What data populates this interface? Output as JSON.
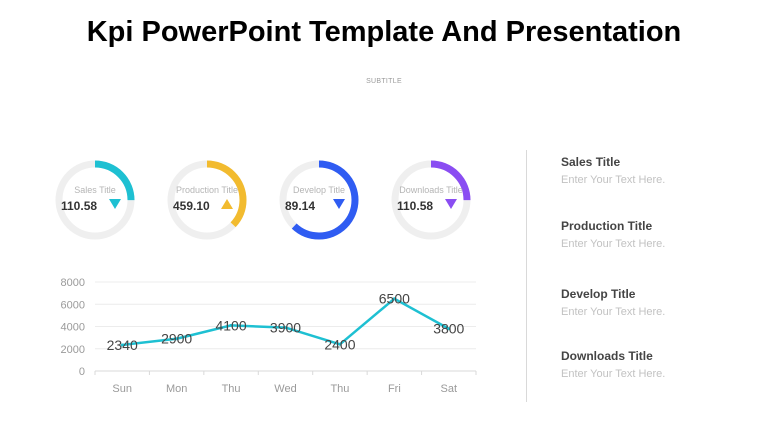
{
  "title": "Kpi PowerPoint Template And Presentation",
  "subtitle": "SUBTITLE",
  "kpis": [
    {
      "label": "Sales Title",
      "value": "110.58",
      "color": "#1ec0d2",
      "progress": 0.25,
      "arrow": "down"
    },
    {
      "label": "Production Title",
      "value": "459.10",
      "color": "#f2bb2f",
      "progress": 0.37,
      "arrow": "up"
    },
    {
      "label": "Develop Title",
      "value": "89.14",
      "color": "#2f5cf2",
      "progress": 0.62,
      "arrow": "down"
    },
    {
      "label": "Downloads Title",
      "value": "110.58",
      "color": "#8a4df2",
      "progress": 0.25,
      "arrow": "down"
    }
  ],
  "legend": [
    {
      "title": "Sales Title",
      "text": "Enter Your Text Here."
    },
    {
      "title": "Production Title",
      "text": "Enter Your Text Here."
    },
    {
      "title": "Develop Title",
      "text": "Enter Your Text Here."
    },
    {
      "title": "Downloads Title",
      "text": "Enter Your Text Here."
    }
  ],
  "chart_data": {
    "type": "line",
    "categories": [
      "Sun",
      "Mon",
      "Thu",
      "Wed",
      "Thu",
      "Fri",
      "Sat"
    ],
    "values": [
      2340,
      2900,
      4100,
      3900,
      2400,
      6500,
      3800
    ],
    "data_labels": [
      "2340",
      "2900",
      "4100",
      "3900",
      "2400",
      "6500",
      "3800"
    ],
    "y_ticks": [
      "0",
      "2000",
      "4000",
      "6000",
      "8000"
    ],
    "ylim": [
      0,
      8000
    ],
    "grid": true,
    "line_color": "#1ec0d2"
  }
}
